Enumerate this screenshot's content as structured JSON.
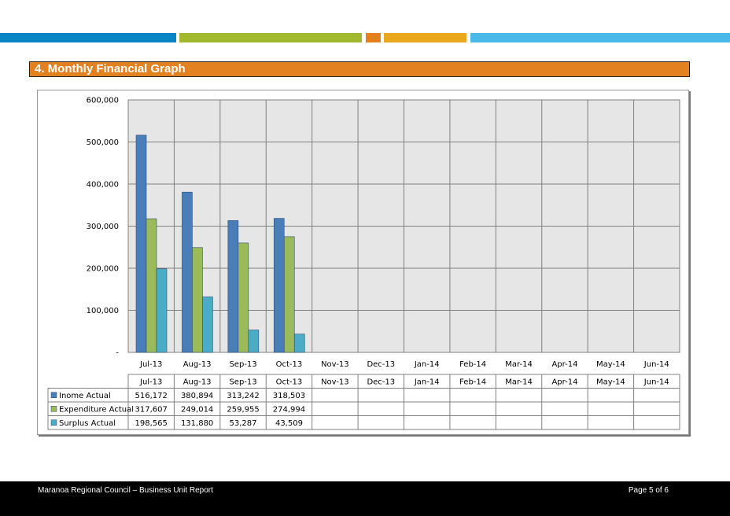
{
  "page": {
    "stripe_colors": [
      "#0a85c6",
      "#a1b92f",
      "#e3801f",
      "#e8a71c",
      "#4ab9e8"
    ],
    "section_title": "4.  Monthly Financial Graph",
    "footer_left": "Maranoa Regional Council – Business Unit Report",
    "footer_right": "Page 5 of 6"
  },
  "chart_data": {
    "type": "bar",
    "categories": [
      "Jul-13",
      "Aug-13",
      "Sep-13",
      "Oct-13",
      "Nov-13",
      "Dec-13",
      "Jan-14",
      "Feb-14",
      "Mar-14",
      "Apr-14",
      "May-14",
      "Jun-14"
    ],
    "series": [
      {
        "name": "Inome Actual",
        "color": "#4a7ebb",
        "values": [
          516172,
          380894,
          313242,
          318503,
          null,
          null,
          null,
          null,
          null,
          null,
          null,
          null
        ],
        "labels": [
          "516,172",
          "380,894",
          "313,242",
          "318,503",
          "",
          "",
          "",
          "",
          "",
          "",
          "",
          ""
        ]
      },
      {
        "name": "Expenditure Actual",
        "color": "#9bbb59",
        "values": [
          317607,
          249014,
          259955,
          274994,
          null,
          null,
          null,
          null,
          null,
          null,
          null,
          null
        ],
        "labels": [
          "317,607",
          "249,014",
          "259,955",
          "274,994",
          "",
          "",
          "",
          "",
          "",
          "",
          "",
          ""
        ]
      },
      {
        "name": "Surplus Actual",
        "color": "#4bacc6",
        "values": [
          198565,
          131880,
          53287,
          43509,
          null,
          null,
          null,
          null,
          null,
          null,
          null,
          null
        ],
        "labels": [
          "198,565",
          "131,880",
          "53,287",
          "43,509",
          "",
          "",
          "",
          "",
          "",
          "",
          "",
          ""
        ]
      }
    ],
    "ylim": [
      0,
      600000
    ],
    "yticks": [
      0,
      100000,
      200000,
      300000,
      400000,
      500000,
      600000
    ],
    "ytick_labels": [
      "-",
      "100,000",
      "200,000",
      "300,000",
      "400,000",
      "500,000",
      "600,000"
    ],
    "grid": true,
    "plot_background": "#e6e6e6",
    "data_table": true
  }
}
